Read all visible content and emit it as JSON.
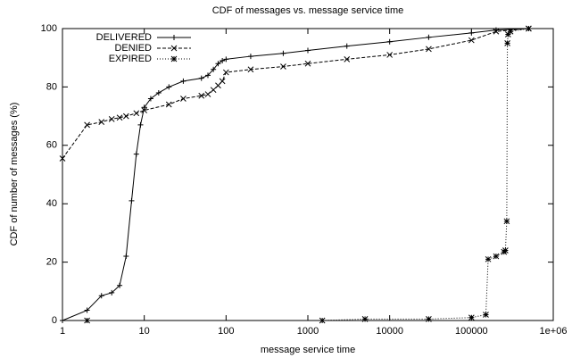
{
  "chart_data": {
    "type": "line",
    "title": "CDF of messages vs. message service time",
    "xlabel": "message service time",
    "ylabel": "CDF of number of messages (%)",
    "xscale": "log",
    "xlim": [
      1,
      1000000
    ],
    "ylim": [
      0,
      100
    ],
    "xticks": [
      1,
      10,
      100,
      1000,
      10000,
      100000,
      {
        "value": 1000000,
        "label": "1e+06"
      }
    ],
    "yticks": [
      0,
      20,
      40,
      60,
      80,
      100
    ],
    "legend": "top-left",
    "series": [
      {
        "name": "DELIVERED",
        "color": "#000000",
        "line_style": "solid",
        "marker": "plus",
        "x": [
          1,
          2,
          3,
          4,
          5,
          6,
          7,
          8,
          9,
          10,
          12,
          15,
          20,
          30,
          50,
          60,
          70,
          80,
          90,
          100,
          200,
          500,
          1000,
          3000,
          10000,
          30000,
          100000,
          200000,
          500000
        ],
        "values": [
          0,
          3.5,
          8.5,
          9.5,
          12,
          22,
          41,
          57,
          67,
          73,
          76,
          78,
          80,
          82,
          83,
          84,
          86,
          88,
          89,
          89.5,
          90.5,
          91.5,
          92.5,
          94,
          95.5,
          97,
          98.5,
          99.5,
          100
        ]
      },
      {
        "name": "DENIED",
        "color": "#000000",
        "line_style": "dashed",
        "marker": "cross",
        "x": [
          1,
          2,
          3,
          4,
          5,
          6,
          8,
          10,
          20,
          30,
          50,
          60,
          70,
          80,
          90,
          100,
          200,
          500,
          1000,
          3000,
          10000,
          30000,
          100000,
          200000,
          500000
        ],
        "values": [
          55.5,
          67,
          68,
          69,
          69.5,
          70,
          71,
          72,
          74,
          76,
          77,
          77.5,
          79,
          80.5,
          82,
          85,
          86,
          87,
          88,
          89.5,
          91,
          93,
          96,
          99,
          100
        ]
      },
      {
        "name": "EXPIRED",
        "color": "#000000",
        "line_style": "dotted",
        "marker": "star",
        "x": [
          2,
          1500,
          5000,
          30000,
          100000,
          150000,
          160000,
          200000,
          250000,
          260000,
          270000,
          275000,
          280000,
          300000,
          500000
        ],
        "values": [
          0,
          0,
          0.5,
          0.5,
          1,
          2,
          21,
          22,
          23.5,
          24,
          34,
          95,
          98,
          99,
          100
        ]
      }
    ]
  }
}
